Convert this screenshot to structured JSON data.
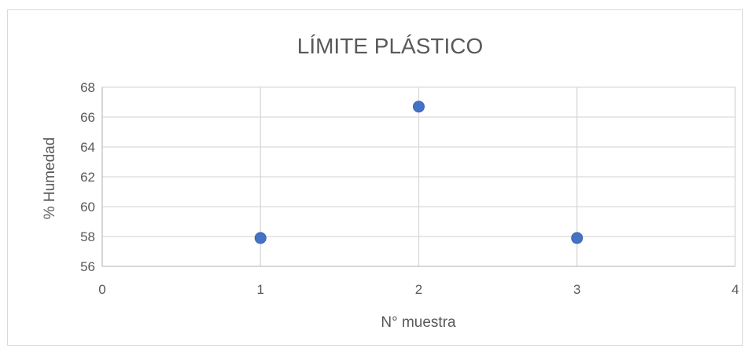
{
  "chart_data": {
    "type": "scatter",
    "title": "LÍMITE PLÁSTICO",
    "xlabel": "N° muestra",
    "ylabel": "% Humedad",
    "xlim": [
      0,
      4
    ],
    "ylim": [
      56,
      68
    ],
    "x_ticks": [
      0,
      1,
      2,
      3,
      4
    ],
    "y_ticks": [
      56,
      58,
      60,
      62,
      64,
      66,
      68
    ],
    "grid": true,
    "legend": "none",
    "marker_color": "#4472c4",
    "series": [
      {
        "points": [
          {
            "x": 1,
            "y": 57.9
          },
          {
            "x": 2,
            "y": 66.7
          },
          {
            "x": 3,
            "y": 57.9
          }
        ]
      }
    ]
  }
}
